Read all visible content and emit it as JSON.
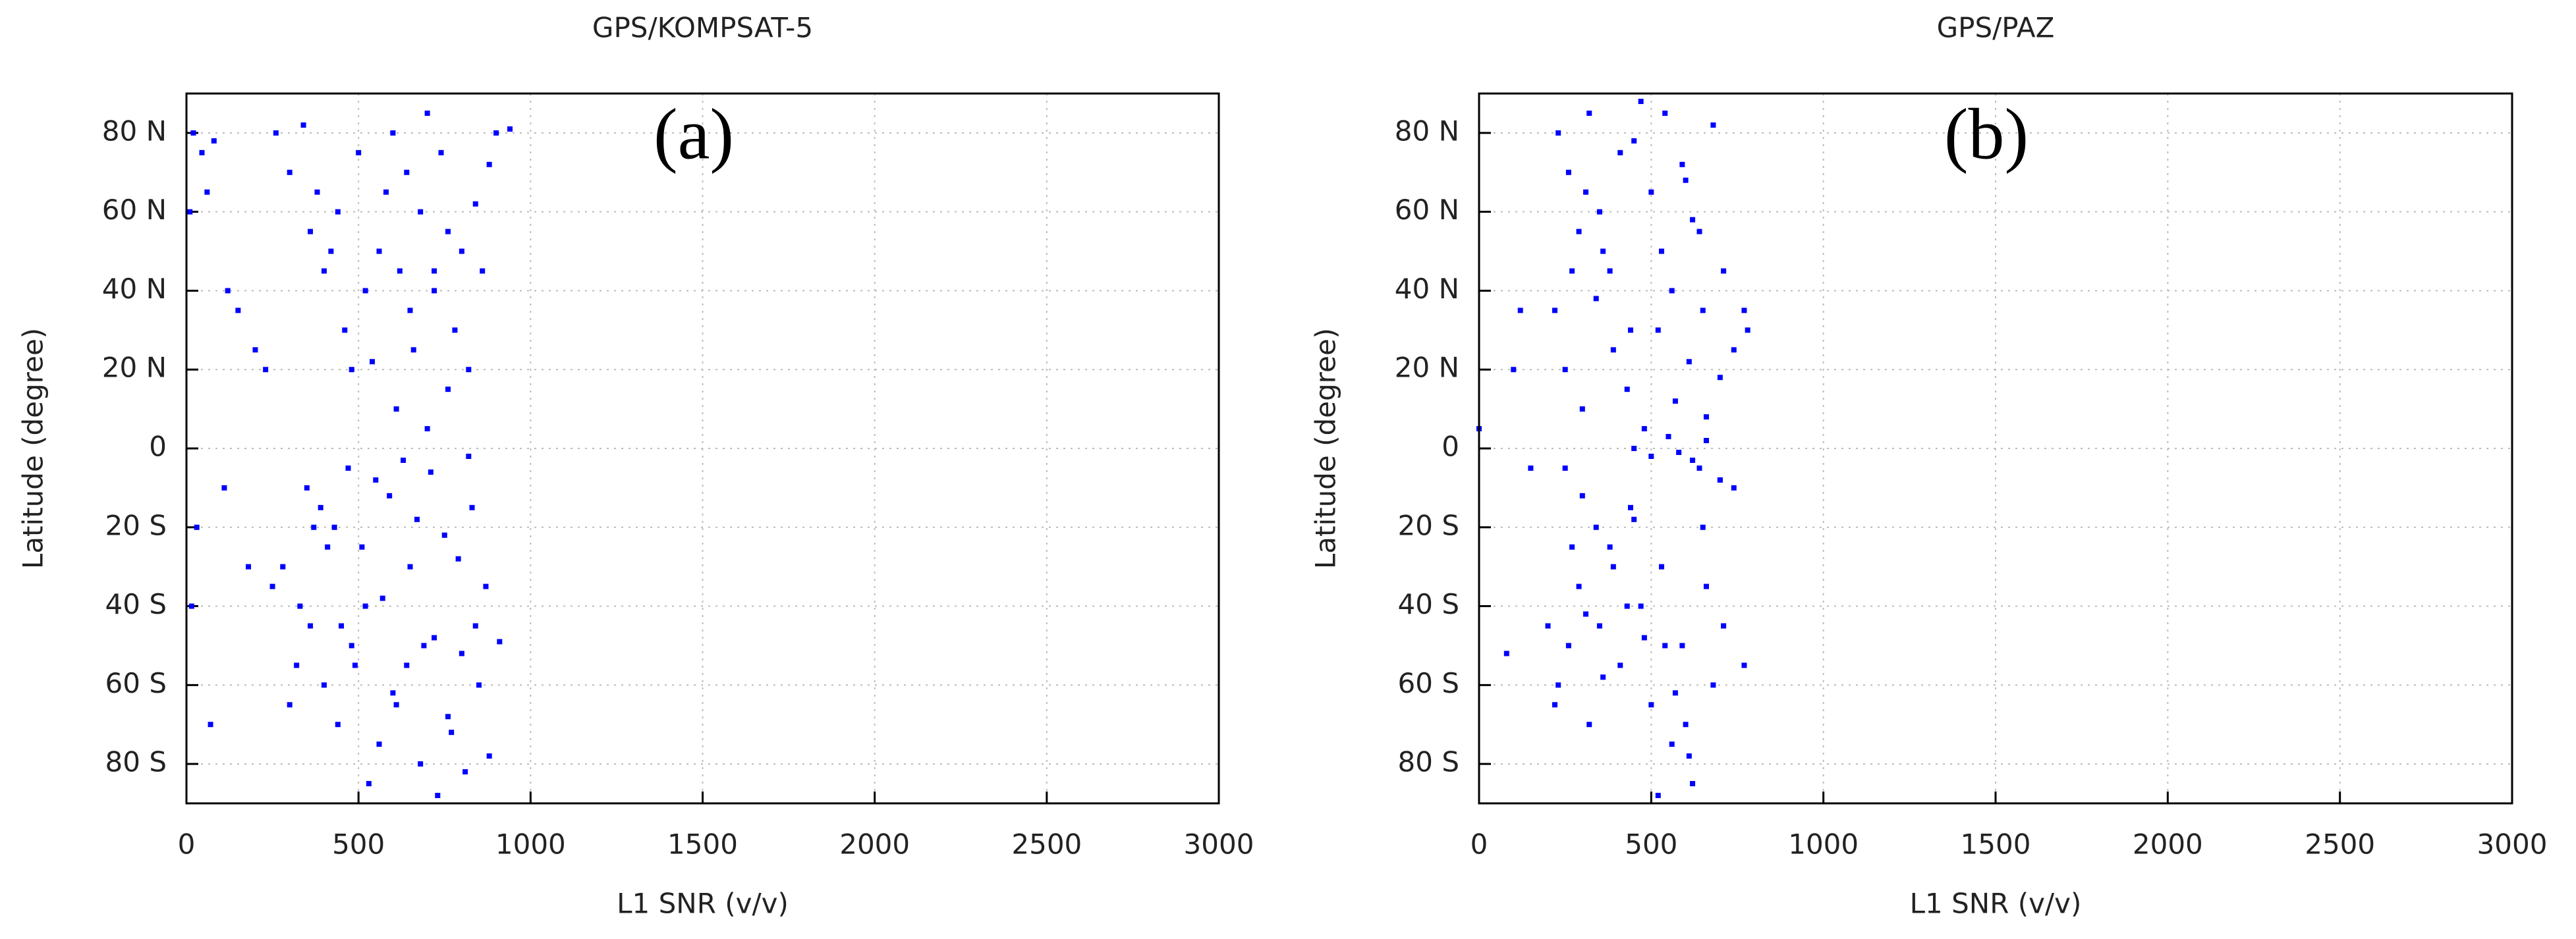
{
  "chart_data": [
    {
      "type": "scatter",
      "title": "GPS/KOMPSAT-5",
      "xlabel": "L1 SNR (v/v)",
      "ylabel": "Latitude (degree)",
      "annotation": "(a)",
      "color": "#0000ff",
      "grid": true,
      "xlim": [
        0,
        3000
      ],
      "ylim": [
        -90,
        90
      ],
      "xticks": [
        0,
        500,
        1000,
        1500,
        2000,
        2500,
        3000
      ],
      "yticks": [
        {
          "value": 80,
          "label": "80 N"
        },
        {
          "value": 60,
          "label": "60 N"
        },
        {
          "value": 40,
          "label": "40 N"
        },
        {
          "value": 20,
          "label": "20 N"
        },
        0,
        {
          "value": -20,
          "label": "20 S"
        },
        {
          "value": -40,
          "label": "40 S"
        },
        {
          "value": -60,
          "label": "60 S"
        },
        {
          "value": -80,
          "label": "80 S"
        }
      ],
      "x": [
        20,
        45,
        80,
        10,
        60,
        120,
        150,
        200,
        260,
        300,
        340,
        360,
        380,
        400,
        420,
        440,
        460,
        480,
        500,
        520,
        540,
        560,
        580,
        600,
        620,
        640,
        660,
        680,
        700,
        720,
        740,
        760,
        780,
        800,
        820,
        840,
        860,
        880,
        900,
        940,
        350,
        390,
        430,
        470,
        510,
        550,
        590,
        630,
        670,
        710,
        750,
        790,
        830,
        870,
        910,
        300,
        320,
        360,
        400,
        440,
        480,
        520,
        560,
        600,
        640,
        680,
        720,
        760,
        800,
        840,
        880,
        250,
        280,
        330,
        370,
        410,
        450,
        490,
        530,
        570,
        610,
        650,
        690,
        730,
        770,
        810,
        850,
        15,
        30,
        70,
        110,
        180,
        230,
        610,
        700,
        760,
        820,
        650,
        720
      ],
      "y": [
        80,
        75,
        78,
        60,
        65,
        40,
        35,
        25,
        80,
        70,
        82,
        55,
        65,
        45,
        50,
        60,
        30,
        20,
        75,
        40,
        22,
        50,
        65,
        80,
        45,
        70,
        25,
        60,
        85,
        40,
        75,
        55,
        30,
        50,
        20,
        62,
        45,
        72,
        80,
        81,
        -10,
        -15,
        -20,
        -5,
        -25,
        -8,
        -12,
        -3,
        -18,
        -6,
        -22,
        -28,
        -15,
        -35,
        -49,
        -65,
        -55,
        -45,
        -60,
        -70,
        -50,
        -40,
        -75,
        -62,
        -55,
        -80,
        -48,
        -68,
        -52,
        -45,
        -78,
        -35,
        -30,
        -40,
        -20,
        -25,
        -45,
        -55,
        -85,
        -38,
        -65,
        -30,
        -50,
        -88,
        -72,
        -82,
        -60,
        -40,
        -20,
        -70,
        -10,
        -30,
        20,
        10,
        5,
        15,
        -2,
        35,
        45
      ]
    },
    {
      "type": "scatter",
      "title": "GPS/PAZ",
      "xlabel": "L1 SNR (v/v)",
      "ylabel": "Latitude (degree)",
      "annotation": "(b)",
      "color": "#0000ff",
      "grid": true,
      "xlim": [
        0,
        3000
      ],
      "ylim": [
        -90,
        90
      ],
      "xticks": [
        0,
        500,
        1000,
        1500,
        2000,
        2500,
        3000
      ],
      "yticks": [
        {
          "value": 80,
          "label": "80 N"
        },
        {
          "value": 60,
          "label": "60 N"
        },
        {
          "value": 40,
          "label": "40 N"
        },
        {
          "value": 20,
          "label": "20 N"
        },
        0,
        {
          "value": -20,
          "label": "20 S"
        },
        {
          "value": -40,
          "label": "40 S"
        },
        {
          "value": -60,
          "label": "60 S"
        },
        {
          "value": -80,
          "label": "80 S"
        }
      ],
      "x": [
        230,
        260,
        290,
        320,
        350,
        380,
        410,
        440,
        470,
        500,
        530,
        560,
        590,
        620,
        650,
        680,
        710,
        740,
        770,
        780,
        250,
        300,
        340,
        390,
        430,
        480,
        520,
        570,
        610,
        660,
        700,
        220,
        270,
        310,
        360,
        450,
        540,
        600,
        640,
        120,
        230,
        260,
        290,
        320,
        350,
        380,
        410,
        440,
        470,
        500,
        530,
        560,
        590,
        620,
        650,
        680,
        710,
        740,
        770,
        80,
        250,
        300,
        340,
        390,
        430,
        480,
        520,
        570,
        610,
        660,
        700,
        220,
        270,
        310,
        360,
        450,
        540,
        600,
        640,
        200,
        0,
        100,
        150,
        450,
        500,
        550,
        580,
        620,
        660,
        700
      ],
      "y": [
        80,
        70,
        55,
        85,
        60,
        45,
        75,
        30,
        88,
        65,
        50,
        40,
        72,
        58,
        35,
        82,
        45,
        25,
        35,
        30,
        20,
        10,
        38,
        25,
        15,
        5,
        30,
        12,
        22,
        8,
        18,
        35,
        45,
        65,
        50,
        78,
        85,
        68,
        55,
        35,
        -60,
        -50,
        -35,
        -70,
        -45,
        -25,
        -55,
        -15,
        -40,
        -65,
        -30,
        -75,
        -50,
        -85,
        -20,
        -60,
        -45,
        -10,
        -55,
        -52,
        -5,
        -12,
        -20,
        -30,
        -40,
        -48,
        -88,
        -62,
        -78,
        -35,
        -8,
        -65,
        -25,
        -42,
        -58,
        -18,
        -50,
        -70,
        -5,
        -45,
        5,
        20,
        -5,
        0,
        -2,
        3,
        -1,
        -3,
        2,
        -8
      ]
    }
  ]
}
